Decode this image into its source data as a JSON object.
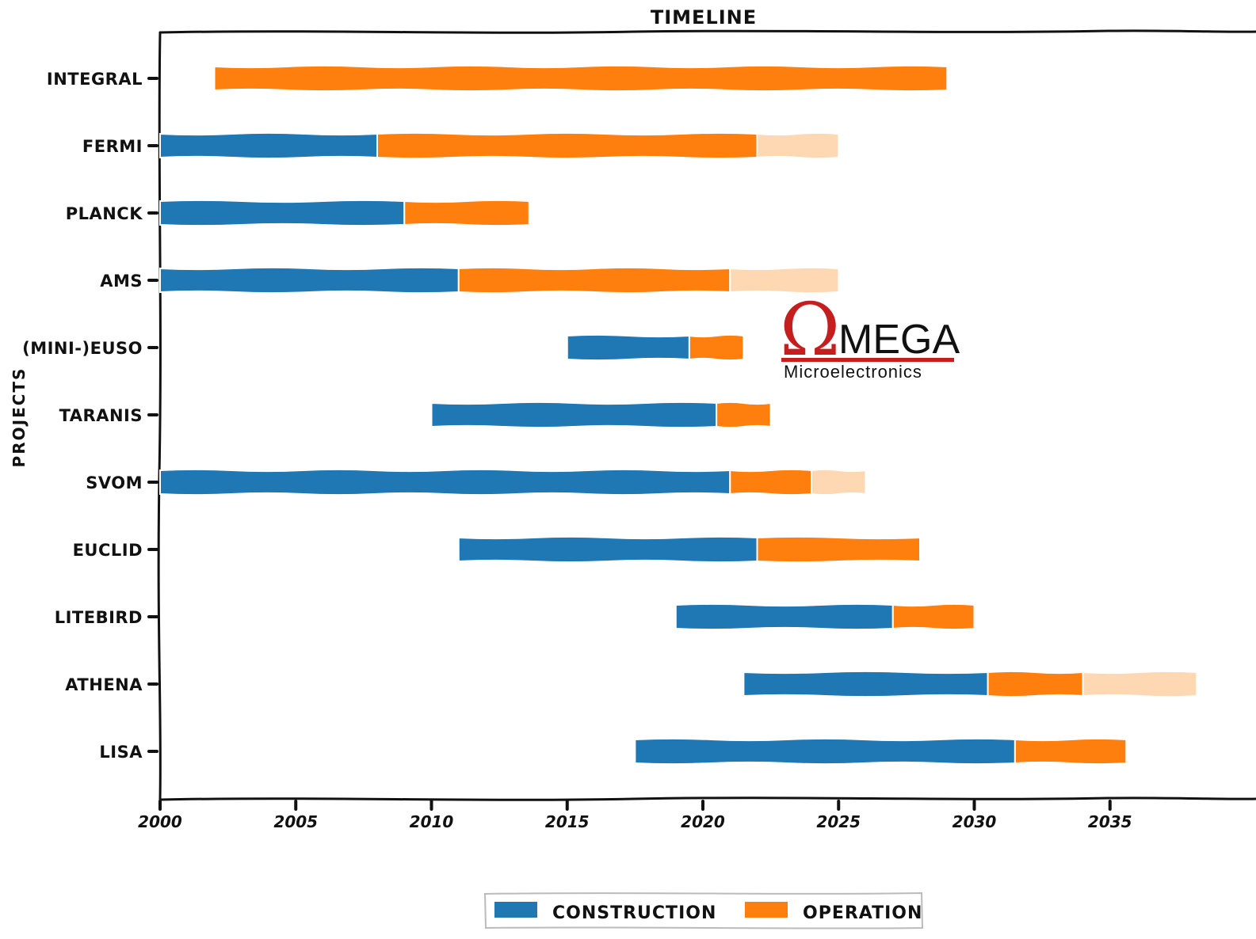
{
  "chart_data": {
    "type": "bar",
    "orientation": "horizontal",
    "title": "TIMELINE",
    "xlabel": "",
    "ylabel": "PROJECTS",
    "xlim": [
      2000,
      2040
    ],
    "xticks": [
      "2000",
      "2005",
      "2010",
      "2015",
      "2020",
      "2025",
      "2030",
      "2035"
    ],
    "categories": [
      "INTEGRAL",
      "FERMI",
      "PLANCK",
      "AMS",
      "(MINI-)EUSO",
      "TARANIS",
      "SVOM",
      "EUCLID",
      "LITEBIRD",
      "ATHENA",
      "LISA"
    ],
    "series": [
      {
        "name": "CONSTRUCTION",
        "color": "#1f77b4",
        "segments": [
          null,
          [
            2000,
            2008
          ],
          [
            2000,
            2009
          ],
          [
            2000,
            2011
          ],
          [
            2015,
            2019.5
          ],
          [
            2010,
            2020.5
          ],
          [
            2000,
            2021
          ],
          [
            2011,
            2022
          ],
          [
            2019,
            2027
          ],
          [
            2021.5,
            2030.5
          ],
          [
            2017.5,
            2031.5
          ]
        ]
      },
      {
        "name": "OPERATION",
        "color": "#ff7f0e",
        "segments": [
          [
            2002,
            2029
          ],
          [
            2008,
            2022
          ],
          [
            2009,
            2013.6
          ],
          [
            2011,
            2021
          ],
          [
            2019.5,
            2021.5
          ],
          [
            2020.5,
            2022.5
          ],
          [
            2021,
            2024
          ],
          [
            2022,
            2028
          ],
          [
            2027,
            2030
          ],
          [
            2030.5,
            2034
          ],
          [
            2031.5,
            2035.6
          ]
        ]
      },
      {
        "color": "#fdd8b2",
        "segments": [
          null,
          [
            2022,
            2025
          ],
          null,
          [
            2021,
            2025
          ],
          null,
          null,
          [
            2024,
            2026
          ],
          null,
          null,
          [
            2034,
            2038.2
          ],
          null
        ]
      }
    ],
    "legend": {
      "placement": "bottom-center",
      "entries": [
        "CONSTRUCTION",
        "OPERATION"
      ]
    },
    "grid": false
  },
  "logo": {
    "symbol": "Ω",
    "word": "MEGA",
    "subtitle": "Microelectronics",
    "color": "#c41e1e"
  }
}
